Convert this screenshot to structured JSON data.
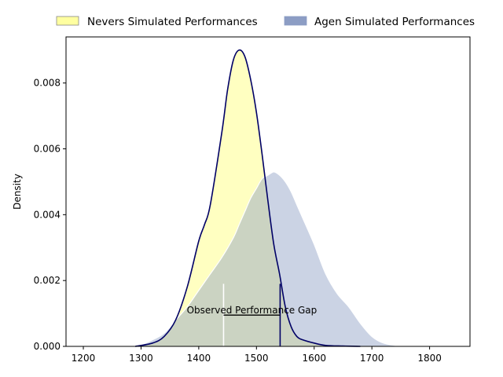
{
  "chart_data": {
    "type": "area",
    "title": "",
    "xlabel": "",
    "ylabel": "Density",
    "xlim": [
      1170,
      1870
    ],
    "ylim": [
      0,
      0.0094
    ],
    "x_ticks": [
      1200,
      1300,
      1400,
      1500,
      1600,
      1700,
      1800
    ],
    "x_tick_labels": [
      "1200",
      "1300",
      "1400",
      "1500",
      "1600",
      "1700",
      "1800"
    ],
    "y_ticks": [
      0,
      0.002,
      0.004,
      0.006,
      0.008
    ],
    "y_tick_labels": [
      "0.000",
      "0.002",
      "0.004",
      "0.006",
      "0.008"
    ],
    "grid": false,
    "legend_position": "top",
    "series": [
      {
        "name": "Nevers Simulated Performances",
        "fill_color": "#ffffa0",
        "line_color": "#000066",
        "x": [
          1290,
          1320,
          1340,
          1360,
          1380,
          1400,
          1410,
          1420,
          1440,
          1450,
          1460,
          1470,
          1480,
          1490,
          1500,
          1510,
          1520,
          1530,
          1540,
          1550,
          1560,
          1570,
          1580,
          1600,
          1620,
          1650,
          1680
        ],
        "y": [
          0,
          0.0001,
          0.0003,
          0.0008,
          0.0018,
          0.0032,
          0.0037,
          0.0043,
          0.0065,
          0.0078,
          0.0087,
          0.009,
          0.0088,
          0.0081,
          0.0071,
          0.0058,
          0.0044,
          0.0031,
          0.0022,
          0.0012,
          0.0006,
          0.0003,
          0.0002,
          0.0001,
          3e-05,
          1e-05,
          0
        ]
      },
      {
        "name": "Agen Simulated Performances",
        "fill_color": "#8c9dc4",
        "line_color": "#ffffff",
        "x": [
          1280,
          1300,
          1320,
          1340,
          1360,
          1380,
          1400,
          1420,
          1440,
          1460,
          1470,
          1480,
          1490,
          1500,
          1510,
          1520,
          1530,
          1540,
          1550,
          1560,
          1570,
          1580,
          1600,
          1620,
          1640,
          1660,
          1680,
          1700,
          1720,
          1750
        ],
        "y": [
          0,
          5e-05,
          0.0002,
          0.0004,
          0.0008,
          0.0012,
          0.0017,
          0.0022,
          0.0027,
          0.0033,
          0.0037,
          0.0041,
          0.0045,
          0.0048,
          0.0051,
          0.0052,
          0.0053,
          0.0052,
          0.005,
          0.0047,
          0.0043,
          0.0039,
          0.0031,
          0.0022,
          0.0016,
          0.0012,
          0.0007,
          0.0003,
          0.0001,
          0
        ]
      }
    ],
    "annotations": [
      {
        "text": "Observed Performance Gap",
        "x_start": 1443,
        "x_end": 1541,
        "y": 0.00095,
        "marker_height": 0.0019,
        "start_color": "#ffffff",
        "end_color": "#000066"
      }
    ]
  }
}
